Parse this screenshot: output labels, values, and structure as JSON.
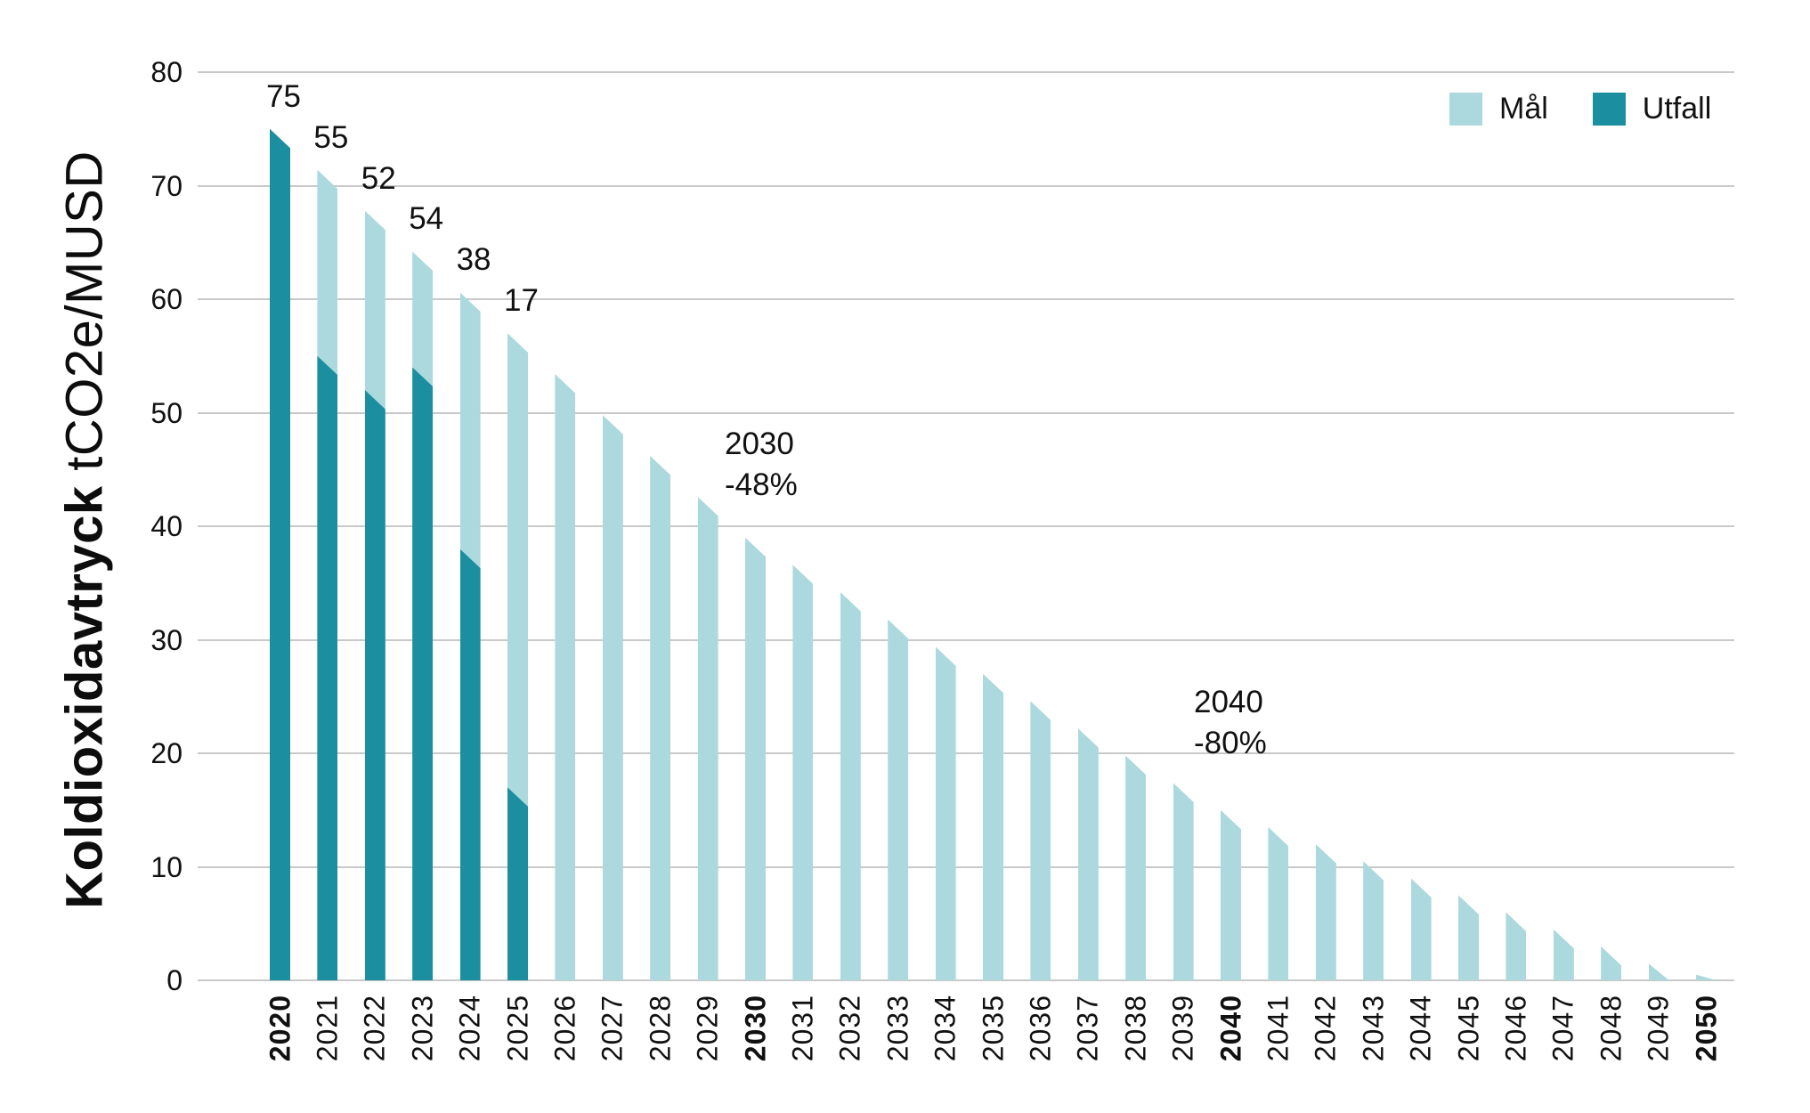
{
  "chart_data": {
    "type": "bar",
    "title": "Koldioxidavtryck tCO2e/MUSD",
    "y_axis_title_bold": "Koldioxidavtryck",
    "y_axis_title_unit": "tCO2e/MUSD",
    "categories": [
      "2020",
      "2021",
      "2022",
      "2023",
      "2024",
      "2025",
      "2026",
      "2027",
      "2028",
      "2029",
      "2030",
      "2031",
      "2032",
      "2033",
      "2034",
      "2035",
      "2036",
      "2037",
      "2038",
      "2039",
      "2040",
      "2041",
      "2042",
      "2043",
      "2044",
      "2045",
      "2046",
      "2047",
      "2048",
      "2049",
      "2050"
    ],
    "bold_categories": [
      "2020",
      "2030",
      "2040",
      "2050"
    ],
    "series": [
      {
        "name": "Mål",
        "color": "#abd9de",
        "values": [
          75,
          71.4,
          67.8,
          64.2,
          60.6,
          57,
          53.4,
          49.8,
          46.2,
          42.6,
          39,
          36.6,
          34.2,
          31.8,
          29.4,
          27,
          24.6,
          22.2,
          19.8,
          17.4,
          15,
          13.5,
          12,
          10.5,
          9,
          7.5,
          6,
          4.5,
          3,
          1.5,
          0.5
        ]
      },
      {
        "name": "Utfall",
        "color": "#1b8ea0",
        "values": [
          75,
          55,
          52,
          54,
          38,
          17,
          null,
          null,
          null,
          null,
          null,
          null,
          null,
          null,
          null,
          null,
          null,
          null,
          null,
          null,
          null,
          null,
          null,
          null,
          null,
          null,
          null,
          null,
          null,
          null,
          null
        ]
      }
    ],
    "bar_value_labels": [
      "75",
      "55",
      "52",
      "54",
      "38",
      "17"
    ],
    "annotations": [
      {
        "year": "2030",
        "text": "-48%"
      },
      {
        "year": "2040",
        "text": "-80%"
      }
    ],
    "y_axis": {
      "min": 0,
      "max": 80,
      "tick_step": 10,
      "ticks": [
        80,
        70,
        60,
        50,
        40,
        30,
        20,
        10,
        0
      ]
    },
    "grid": true,
    "legend_position": "top-right",
    "legend": [
      {
        "label": "Mål",
        "color": "#abd9de"
      },
      {
        "label": "Utfall",
        "color": "#1b8ea0"
      }
    ]
  }
}
